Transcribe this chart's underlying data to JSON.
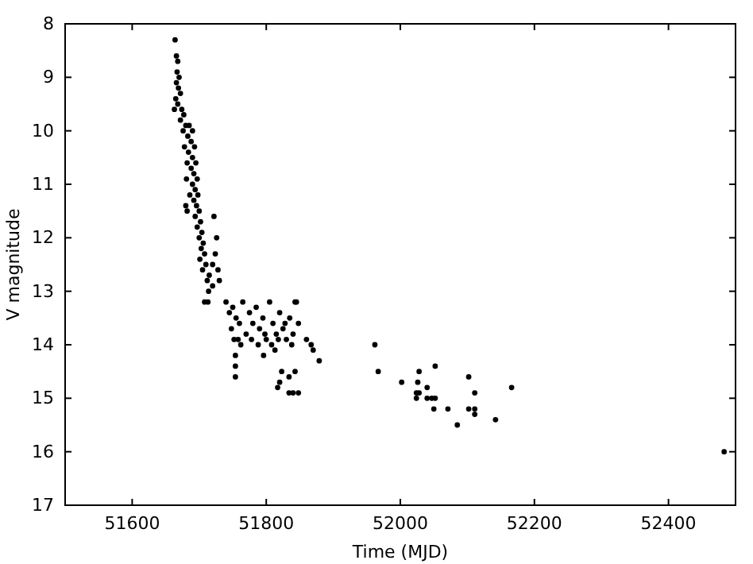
{
  "chart_data": {
    "type": "scatter",
    "xlabel": "Time (MJD)",
    "ylabel": "V magnitude",
    "xlim": [
      51500,
      52500
    ],
    "ylim": [
      17,
      8
    ],
    "xticks": [
      51600,
      51800,
      52000,
      52200,
      52400
    ],
    "yticks": [
      8,
      9,
      10,
      11,
      12,
      13,
      14,
      15,
      16,
      17
    ],
    "grid": false,
    "marker": "circle",
    "series": [
      {
        "color": "#000000",
        "x": [
          51664,
          51666,
          51668,
          51667,
          51670,
          51666,
          51669,
          51672,
          51665,
          51668,
          51663,
          51674,
          51677,
          51672,
          51680,
          51685,
          51676,
          51683,
          51690,
          51688,
          51678,
          51693,
          51684,
          51690,
          51682,
          51695,
          51688,
          51692,
          51681,
          51697,
          51690,
          51694,
          51686,
          51698,
          51692,
          51680,
          51696,
          51700,
          51694,
          51702,
          51697,
          51704,
          51700,
          51706,
          51703,
          51708,
          51701,
          51710,
          51705,
          51715,
          51720,
          51724,
          51726,
          51722,
          51728,
          51712,
          51708,
          51720,
          51730,
          51714,
          51682,
          51740,
          51745,
          51750,
          51755,
          51748,
          51760,
          51765,
          51770,
          51775,
          51780,
          51785,
          51790,
          51795,
          51800,
          51805,
          51810,
          51815,
          51820,
          51825,
          51830,
          51835,
          51840,
          51845,
          51848,
          51752,
          51762,
          51778,
          51788,
          51798,
          51808,
          51818,
          51828,
          51838,
          51758,
          51713,
          51754,
          51754,
          51754,
          51796,
          51813,
          51823,
          51820,
          51817,
          51834,
          51843,
          51834,
          51840,
          51848,
          51843,
          51860,
          51867,
          51870,
          51879,
          51962,
          51967,
          52002,
          52028,
          52052,
          52026,
          52040,
          52024,
          52028,
          52040,
          52047,
          52052,
          52024,
          52050,
          52071,
          52085,
          52102,
          52111,
          52102,
          52111,
          52111,
          52142,
          52166,
          52483
        ],
        "values": [
          8.3,
          8.6,
          8.7,
          8.9,
          9.0,
          9.1,
          9.2,
          9.3,
          9.4,
          9.5,
          9.6,
          9.6,
          9.7,
          9.8,
          9.9,
          9.9,
          10.0,
          10.1,
          10.0,
          10.2,
          10.3,
          10.3,
          10.4,
          10.5,
          10.6,
          10.6,
          10.7,
          10.8,
          10.9,
          10.9,
          11.0,
          11.1,
          11.2,
          11.2,
          11.3,
          11.4,
          11.4,
          11.5,
          11.6,
          11.7,
          11.8,
          11.9,
          12.0,
          12.1,
          12.2,
          12.3,
          12.4,
          12.5,
          12.6,
          12.7,
          12.5,
          12.3,
          12.0,
          11.6,
          12.6,
          12.8,
          13.2,
          12.9,
          12.8,
          13.0,
          11.5,
          13.2,
          13.4,
          13.3,
          13.5,
          13.7,
          13.6,
          13.2,
          13.8,
          13.4,
          13.6,
          13.3,
          13.7,
          13.5,
          13.9,
          13.2,
          13.6,
          13.8,
          13.4,
          13.7,
          13.9,
          13.5,
          13.8,
          13.2,
          13.6,
          13.9,
          14.0,
          13.9,
          14.0,
          13.8,
          14.0,
          13.9,
          13.6,
          14.0,
          13.9,
          13.2,
          14.2,
          14.4,
          14.6,
          14.2,
          14.1,
          14.5,
          14.7,
          14.8,
          14.6,
          14.5,
          14.9,
          14.9,
          14.9,
          13.2,
          13.9,
          14.0,
          14.1,
          14.3,
          14.0,
          14.5,
          14.7,
          14.5,
          14.4,
          14.7,
          14.8,
          14.9,
          14.9,
          15.0,
          15.0,
          15.0,
          15.0,
          15.2,
          15.2,
          15.5,
          14.6,
          14.9,
          15.2,
          15.2,
          15.3,
          15.4,
          14.8,
          16.0
        ]
      }
    ]
  }
}
